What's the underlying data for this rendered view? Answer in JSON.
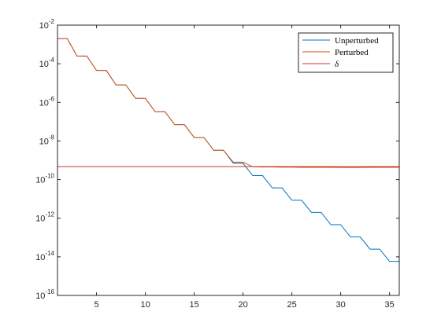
{
  "chart_data": {
    "type": "line",
    "title": "",
    "xlabel": "",
    "ylabel": "",
    "xlim": [
      1,
      36
    ],
    "ylim": [
      1e-16,
      0.01
    ],
    "yscale": "log",
    "grid": false,
    "legend_location": "top-right",
    "x_ticks": [
      5,
      10,
      15,
      20,
      25,
      30,
      35
    ],
    "x_tick_labels": [
      "5",
      "10",
      "15",
      "20",
      "25",
      "30",
      "35"
    ],
    "y_ticks": [
      1e-16,
      1e-14,
      1e-12,
      1e-10,
      1e-08,
      1e-06,
      0.0001,
      0.01
    ],
    "y_tick_labels": [
      {
        "base": "10",
        "exp": "-16"
      },
      {
        "base": "10",
        "exp": "-14"
      },
      {
        "base": "10",
        "exp": "-12"
      },
      {
        "base": "10",
        "exp": "-10"
      },
      {
        "base": "10",
        "exp": "-8"
      },
      {
        "base": "10",
        "exp": "-6"
      },
      {
        "base": "10",
        "exp": "-4"
      },
      {
        "base": "10",
        "exp": "-2"
      }
    ],
    "series": [
      {
        "name": "Unperturbed",
        "color": "#0072BD",
        "x": [
          1,
          2,
          3,
          4,
          5,
          6,
          7,
          8,
          9,
          10,
          11,
          12,
          13,
          14,
          15,
          16,
          17,
          18,
          19,
          20,
          21,
          22,
          23,
          24,
          25,
          26,
          27,
          28,
          29,
          30,
          31,
          32,
          33,
          34,
          35,
          36
        ],
        "y": [
          0.002,
          0.002,
          0.00025,
          0.00025,
          4.5e-05,
          4.5e-05,
          8e-06,
          8e-06,
          1.6e-06,
          1.6e-06,
          3.3e-07,
          3.3e-07,
          7e-08,
          7e-08,
          1.5e-08,
          1.5e-08,
          3.3e-09,
          3.3e-09,
          7e-10,
          7e-10,
          1.6e-10,
          1.6e-10,
          3.7e-11,
          3.7e-11,
          8.5e-12,
          8.5e-12,
          2e-12,
          2e-12,
          4.6e-13,
          4.6e-13,
          1.07e-13,
          1.07e-13,
          2.5e-14,
          2.5e-14,
          5.8e-15,
          5.8e-15
        ]
      },
      {
        "name": "Perturbed",
        "color": "#D95319",
        "x": [
          1,
          2,
          3,
          4,
          5,
          6,
          7,
          8,
          9,
          10,
          11,
          12,
          13,
          14,
          15,
          16,
          17,
          18,
          19,
          20,
          21,
          22,
          23,
          24,
          25,
          26,
          27,
          28,
          29,
          30,
          31,
          32,
          33,
          34,
          35,
          36
        ],
        "y": [
          0.002,
          0.002,
          0.00025,
          0.00025,
          4.5e-05,
          4.5e-05,
          8e-06,
          8e-06,
          1.6e-06,
          1.6e-06,
          3.3e-07,
          3.3e-07,
          7e-08,
          7e-08,
          1.5e-08,
          1.5e-08,
          3.3e-09,
          3.3e-09,
          8e-10,
          8e-10,
          4.6e-10,
          4.5e-10,
          4.5e-10,
          4.4e-10,
          4.4e-10,
          4.3e-10,
          4.3e-10,
          4.3e-10,
          4.3e-10,
          4.2e-10,
          4.2e-10,
          4.2e-10,
          4.3e-10,
          4.3e-10,
          4.3e-10,
          4.3e-10
        ]
      },
      {
        "name": "δ",
        "color": "#C0392B",
        "x": [
          1,
          36
        ],
        "y": [
          4.7e-10,
          4.7e-10
        ]
      }
    ]
  }
}
